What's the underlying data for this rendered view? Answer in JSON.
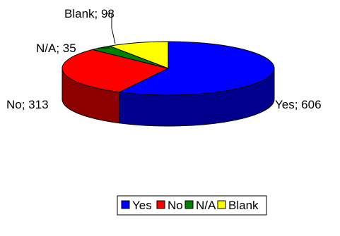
{
  "chart_data": {
    "type": "pie",
    "title": "",
    "style": "3d-exploded-tilt",
    "legend_position": "bottom",
    "categories": [
      "Yes",
      "No",
      "N/A",
      "Blank"
    ],
    "values": [
      606,
      313,
      35,
      98
    ],
    "colors": {
      "Yes": "#0000ff",
      "No": "#ff0000",
      "N/A": "#008000",
      "Blank": "#ffff00"
    },
    "data_labels": [
      "Yes; 606",
      "No; 313",
      "N/A; 35",
      "Blank; 98"
    ],
    "legend": [
      "Yes",
      "No",
      "N/A",
      "Blank"
    ]
  }
}
